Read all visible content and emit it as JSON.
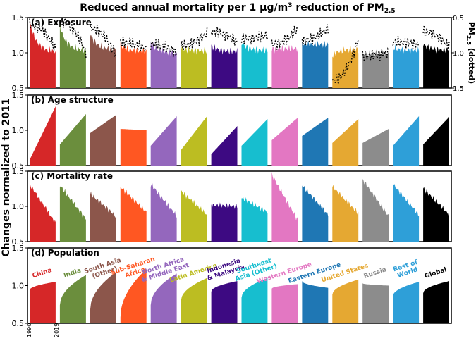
{
  "title": {
    "main": "Reduced annual mortality per 1 μg/m",
    "sup": "3",
    "mid": " reduction of PM",
    "sub": "2.5"
  },
  "ylabel": "Changes normalized to 2011",
  "right_axis": {
    "prefix": "PM",
    "sub": "2.5",
    "suffix": " (dotted)",
    "ticks": [
      "0.5",
      "1.0",
      "1.5"
    ]
  },
  "x_ticks": [
    "1990",
    "2019"
  ],
  "colors": {
    "China": "#d62728",
    "India": "#6b8e3d",
    "South Asia (Other)": "#8c564b",
    "Sub-Saharan Africa": "#ff5722",
    "North Africa & Middle East": "#9467bd",
    "Latin America": "#bcbd22",
    "Indonesia & Malaysia": "#3d0a82",
    "Southeast Asia (Other)": "#17becf",
    "Western Europe": "#e377c2",
    "Eastern Europe": "#1f77b4",
    "United States": "#e5a832",
    "Russia": "#8c8c8c",
    "Rest of World": "#2e9fd8",
    "Global": "#000000"
  },
  "region_labels": [
    [
      "China"
    ],
    [
      "India"
    ],
    [
      "South Asia",
      "(Other)"
    ],
    [
      "Sub-Saharan",
      "Africa"
    ],
    [
      "North Africa",
      "& Middle East"
    ],
    [
      "Latin America"
    ],
    [
      "Indonesia",
      "& Malaysia"
    ],
    [
      "Southeast",
      "Asia (Other)"
    ],
    [
      "Western Europe"
    ],
    [
      "Eastern Europe"
    ],
    [
      "United States"
    ],
    [
      "Russia"
    ],
    [
      "Rest of",
      "World"
    ],
    [
      "Global"
    ]
  ],
  "chart_data": {
    "type": "area",
    "x_range": [
      1990,
      2019
    ],
    "y_ticks": [
      "0.5",
      "1.0",
      "1.5"
    ],
    "ylim": [
      0.5,
      1.5
    ],
    "regions": [
      "China",
      "India",
      "South Asia (Other)",
      "Sub-Saharan Africa",
      "North Africa & Middle East",
      "Latin America",
      "Indonesia & Malaysia",
      "Southeast Asia (Other)",
      "Western Europe",
      "Eastern Europe",
      "United States",
      "Russia",
      "Rest of World",
      "Global"
    ],
    "panels": [
      {
        "label": "(a) Exposure",
        "start": [
          1.45,
          1.38,
          1.28,
          1.12,
          1.15,
          1.06,
          1.1,
          1.15,
          1.05,
          1.12,
          0.96,
          0.97,
          1.08,
          1.12
        ],
        "end": [
          1.02,
          1.04,
          1.05,
          1.02,
          1.0,
          1.03,
          1.02,
          1.03,
          1.06,
          1.12,
          1.05,
          1.0,
          1.03,
          1.04
        ],
        "dotted_start": [
          1.4,
          1.45,
          1.35,
          1.15,
          1.12,
          1.1,
          1.3,
          1.2,
          1.12,
          1.18,
          0.6,
          0.95,
          1.15,
          1.3
        ],
        "dotted_end": [
          1.05,
          1.0,
          0.95,
          1.05,
          1.0,
          1.28,
          1.15,
          1.25,
          1.35,
          1.35,
          1.2,
          1.0,
          1.12,
          1.08
        ]
      },
      {
        "label": "(b) Age structure",
        "start": [
          0.58,
          0.8,
          0.96,
          1.02,
          0.78,
          0.72,
          0.66,
          0.78,
          0.86,
          0.92,
          0.82,
          0.82,
          0.78,
          0.8
        ],
        "end": [
          1.34,
          1.23,
          1.22,
          1.0,
          1.2,
          1.2,
          1.06,
          1.16,
          1.18,
          1.18,
          1.16,
          1.02,
          1.2,
          1.19
        ]
      },
      {
        "label": "(c) Mortality rate",
        "start": [
          1.32,
          1.3,
          1.18,
          1.28,
          1.32,
          1.22,
          1.02,
          1.12,
          1.45,
          1.3,
          1.28,
          1.38,
          1.32,
          1.26
        ],
        "end": [
          0.76,
          0.82,
          0.86,
          0.92,
          0.86,
          0.88,
          1.0,
          0.92,
          0.8,
          0.88,
          0.9,
          0.86,
          0.88,
          0.88
        ]
      },
      {
        "label": "(d) Population",
        "start": [
          0.94,
          0.74,
          0.68,
          0.58,
          0.74,
          0.8,
          0.92,
          0.84,
          0.96,
          1.06,
          0.88,
          1.03,
          0.86,
          0.9
        ],
        "end": [
          1.05,
          1.14,
          1.18,
          1.22,
          1.16,
          1.1,
          1.06,
          1.1,
          1.02,
          0.97,
          1.08,
          1.0,
          1.05,
          1.06
        ]
      }
    ]
  }
}
